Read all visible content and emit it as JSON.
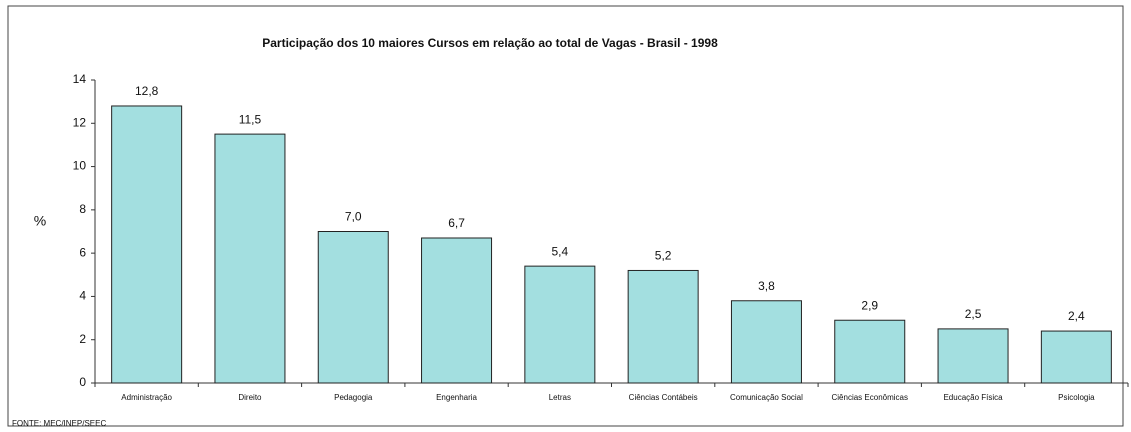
{
  "chart_data": {
    "type": "bar",
    "title": "Participação dos 10 maiores Cursos em relação ao total de Vagas  - Brasil - 1998",
    "y_label": "%",
    "source": "FONTE: MEC/INEP/SEEC",
    "categories": [
      "Administração",
      "Direito",
      "Pedagogia",
      "Engenharia",
      "Letras",
      "Ciências Contábeis",
      "Comunicação Social",
      "Ciências Econômicas",
      "Educação Física",
      "Psicologia"
    ],
    "values": [
      12.8,
      11.5,
      7.0,
      6.7,
      5.4,
      5.2,
      3.8,
      2.9,
      2.5,
      2.4
    ],
    "value_labels": [
      "12,8",
      "11,5",
      "7,0",
      "6,7",
      "5,4",
      "5,2",
      "3,8",
      "2,9",
      "2,5",
      "2,4"
    ],
    "color": "#a3dfe0",
    "ylim": [
      0,
      14
    ],
    "yticks": [
      0,
      2,
      4,
      6,
      8,
      10,
      12,
      14
    ],
    "grid": false
  }
}
